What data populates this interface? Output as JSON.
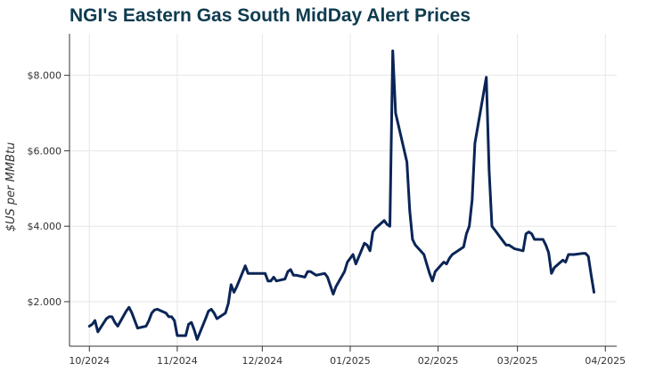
{
  "chart_data": {
    "type": "line",
    "title": "NGI's Eastern Gas South MidDay Alert Prices",
    "xlabel": "",
    "ylabel": "$US per MMBtu",
    "x_ticks": [
      "10/2024",
      "11/2024",
      "12/2024",
      "01/2025",
      "02/2025",
      "03/2025",
      "04/2025"
    ],
    "x_tick_dates": [
      "2024-10-01",
      "2024-11-01",
      "2024-12-01",
      "2025-01-01",
      "2025-02-01",
      "2025-03-01",
      "2025-04-01"
    ],
    "xlim": [
      "2024-09-24",
      "2025-04-05"
    ],
    "y_ticks": [
      "$2.000",
      "$4.000",
      "$6.000",
      "$8.000"
    ],
    "y_tick_values": [
      2,
      4,
      6,
      8
    ],
    "ylim": [
      0.82,
      9.1
    ],
    "grid": true,
    "series": [
      {
        "name": "",
        "color": "#0a2556",
        "x": [
          "2024-10-01",
          "2024-10-02",
          "2024-10-03",
          "2024-10-04",
          "2024-10-07",
          "2024-10-08",
          "2024-10-09",
          "2024-10-10",
          "2024-10-11",
          "2024-10-14",
          "2024-10-15",
          "2024-10-16",
          "2024-10-17",
          "2024-10-18",
          "2024-10-21",
          "2024-10-22",
          "2024-10-23",
          "2024-10-24",
          "2024-10-25",
          "2024-10-28",
          "2024-10-29",
          "2024-10-30",
          "2024-10-31",
          "2024-11-01",
          "2024-11-04",
          "2024-11-05",
          "2024-11-06",
          "2024-11-07",
          "2024-11-08",
          "2024-11-11",
          "2024-11-12",
          "2024-11-13",
          "2024-11-14",
          "2024-11-15",
          "2024-11-18",
          "2024-11-19",
          "2024-11-20",
          "2024-11-21",
          "2024-11-22",
          "2024-11-25",
          "2024-11-26",
          "2024-11-27",
          "2024-12-02",
          "2024-12-03",
          "2024-12-04",
          "2024-12-05",
          "2024-12-06",
          "2024-12-09",
          "2024-12-10",
          "2024-12-11",
          "2024-12-12",
          "2024-12-13",
          "2024-12-16",
          "2024-12-17",
          "2024-12-18",
          "2024-12-19",
          "2024-12-20",
          "2024-12-23",
          "2024-12-24",
          "2024-12-26",
          "2024-12-27",
          "2024-12-30",
          "2024-12-31",
          "2025-01-02",
          "2025-01-03",
          "2025-01-06",
          "2025-01-07",
          "2025-01-08",
          "2025-01-09",
          "2025-01-10",
          "2025-01-13",
          "2025-01-14",
          "2025-01-15",
          "2025-01-16",
          "2025-01-17",
          "2025-01-21",
          "2025-01-22",
          "2025-01-23",
          "2025-01-24",
          "2025-01-27",
          "2025-01-28",
          "2025-01-29",
          "2025-01-30",
          "2025-01-31",
          "2025-02-03",
          "2025-02-04",
          "2025-02-05",
          "2025-02-06",
          "2025-02-07",
          "2025-02-10",
          "2025-02-11",
          "2025-02-12",
          "2025-02-13",
          "2025-02-14",
          "2025-02-18",
          "2025-02-19",
          "2025-02-20",
          "2025-02-21",
          "2025-02-24",
          "2025-02-25",
          "2025-02-26",
          "2025-02-27",
          "2025-02-28",
          "2025-03-03",
          "2025-03-04",
          "2025-03-05",
          "2025-03-06",
          "2025-03-07",
          "2025-03-10",
          "2025-03-11",
          "2025-03-12",
          "2025-03-13",
          "2025-03-14",
          "2025-03-17",
          "2025-03-18",
          "2025-03-19",
          "2025-03-20",
          "2025-03-21",
          "2025-03-24",
          "2025-03-25",
          "2025-03-26",
          "2025-03-27",
          "2025-03-28"
        ],
        "y": [
          1.35,
          1.4,
          1.5,
          1.2,
          1.55,
          1.6,
          1.6,
          1.45,
          1.35,
          1.75,
          1.85,
          1.7,
          1.5,
          1.3,
          1.35,
          1.5,
          1.7,
          1.78,
          1.8,
          1.7,
          1.6,
          1.6,
          1.5,
          1.1,
          1.1,
          1.4,
          1.45,
          1.25,
          1.0,
          1.55,
          1.75,
          1.8,
          1.7,
          1.55,
          1.7,
          1.95,
          2.45,
          2.25,
          2.4,
          2.95,
          2.75,
          2.75,
          2.75,
          2.55,
          2.55,
          2.65,
          2.55,
          2.6,
          2.8,
          2.85,
          2.7,
          2.7,
          2.65,
          2.8,
          2.8,
          2.75,
          2.7,
          2.75,
          2.65,
          2.2,
          2.4,
          2.8,
          3.05,
          3.25,
          3.0,
          3.55,
          3.5,
          3.35,
          3.85,
          3.95,
          4.15,
          4.05,
          4.0,
          8.65,
          7.0,
          5.7,
          4.4,
          3.65,
          3.5,
          3.25,
          3.0,
          2.75,
          2.55,
          2.8,
          3.05,
          3.0,
          3.15,
          3.25,
          3.3,
          3.45,
          3.8,
          4.0,
          4.7,
          6.2,
          7.95,
          5.5,
          4.0,
          3.9,
          3.6,
          3.5,
          3.5,
          3.45,
          3.4,
          3.35,
          3.8,
          3.85,
          3.8,
          3.65,
          3.65,
          3.5,
          3.3,
          2.75,
          2.9,
          3.1,
          3.05,
          3.25,
          3.25,
          3.25,
          3.28,
          3.28,
          3.2,
          2.7,
          2.25
        ]
      }
    ]
  }
}
